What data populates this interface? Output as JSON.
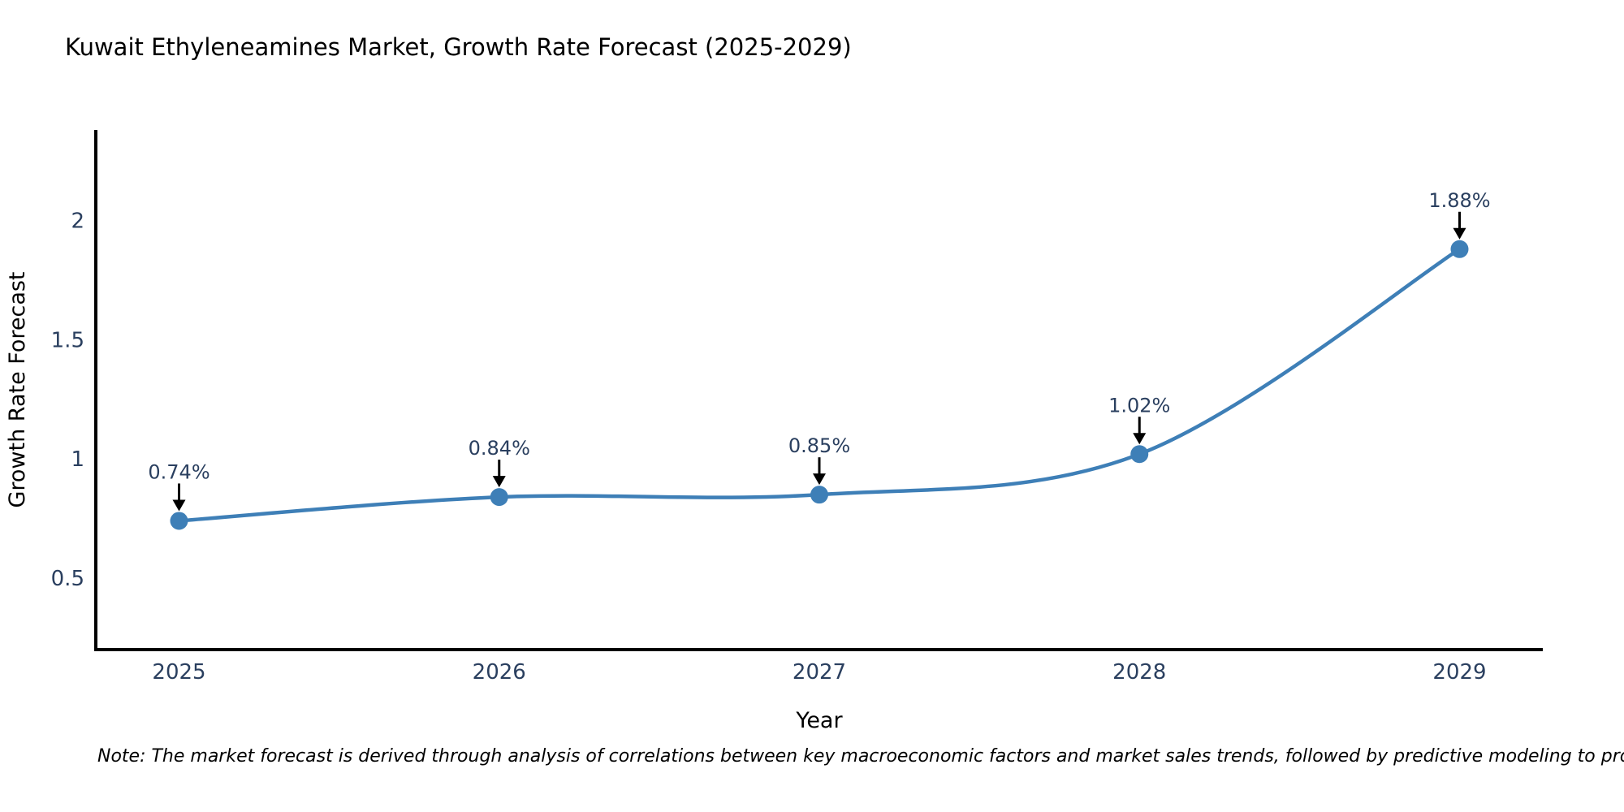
{
  "title": "Kuwait Ethyleneamines Market, Growth Rate Forecast (2025-2029)",
  "note": "Note: The market forecast is derived through analysis of correlations between key macroeconomic factors and market sales trends, followed by predictive modeling to project future sales",
  "chart_data": {
    "type": "line",
    "title": "Kuwait Ethyleneamines Market, Growth Rate Forecast (2025-2029)",
    "x": [
      2025,
      2026,
      2027,
      2028,
      2029
    ],
    "values": [
      0.74,
      0.84,
      0.85,
      1.02,
      1.88
    ],
    "point_labels": [
      "0.74%",
      "0.84%",
      "0.85%",
      "1.02%",
      "1.88%"
    ],
    "xlabel": "Year",
    "ylabel": "Growth Rate Forecast",
    "xtick_labels": [
      "2025",
      "2026",
      "2027",
      "2028",
      "2029"
    ],
    "ytick_values": [
      0.5,
      1,
      1.5,
      2
    ],
    "ytick_labels": [
      "0.5",
      "1",
      "1.5",
      "2"
    ],
    "xlim": [
      2024.74,
      2029.26
    ],
    "ylim": [
      0.2,
      2.38
    ],
    "grid": false,
    "legend": "none",
    "line_shape": "spline",
    "line_color": "#3e7fb7",
    "marker_color": "#3e7fb7",
    "axis_color": "#000000",
    "text_color": "#2a3f5f",
    "annotation_text_color": "#2a3f5f",
    "annotation_arrow_color": "#000000",
    "background_color": "#ffffff"
  }
}
